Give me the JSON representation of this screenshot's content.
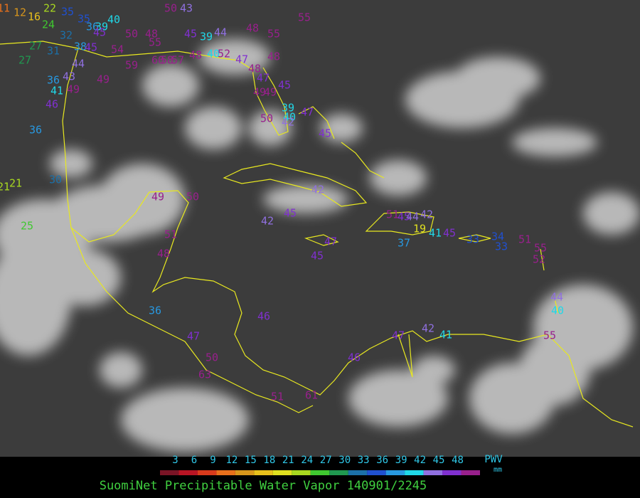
{
  "stations": [
    11,
    12,
    16,
    22,
    35,
    35,
    36,
    39,
    40,
    45,
    54,
    50,
    48,
    55,
    50,
    43,
    45,
    39,
    44,
    48,
    55,
    55,
    24,
    27,
    32,
    31,
    38,
    45,
    44,
    27,
    43,
    36,
    41,
    46,
    49,
    49,
    59,
    60,
    58,
    57,
    48,
    40,
    52,
    47,
    48,
    48,
    47,
    45,
    49,
    49,
    39,
    40,
    50,
    42,
    47,
    45,
    36,
    30,
    21,
    21,
    25,
    49,
    50,
    51,
    48,
    42,
    45,
    42,
    47,
    45,
    51,
    45,
    44,
    42,
    19,
    37,
    41,
    45,
    33,
    34,
    33,
    51,
    55,
    52,
    44,
    40,
    55,
    42,
    41,
    47,
    46,
    46,
    36,
    47,
    50,
    63,
    51,
    61
  ],
  "colorbar": {
    "ticks": [
      3,
      6,
      9,
      12,
      15,
      18,
      21,
      24,
      27,
      30,
      33,
      36,
      39,
      42,
      45,
      48
    ],
    "colors": [
      "#7a1426",
      "#b81424",
      "#d83a1c",
      "#e8701c",
      "#d8961c",
      "#e8c01c",
      "#e0e020",
      "#a8d820",
      "#40c830",
      "#209850",
      "#1c70a8",
      "#2050d0",
      "#2898e0",
      "#20d8e8",
      "#9070e0",
      "#8030d0",
      "#98208c"
    ],
    "quantity": "PWV",
    "unit": "mm"
  },
  "caption": "SuomiNet Precipitable Water Vapor 140901/2245"
}
